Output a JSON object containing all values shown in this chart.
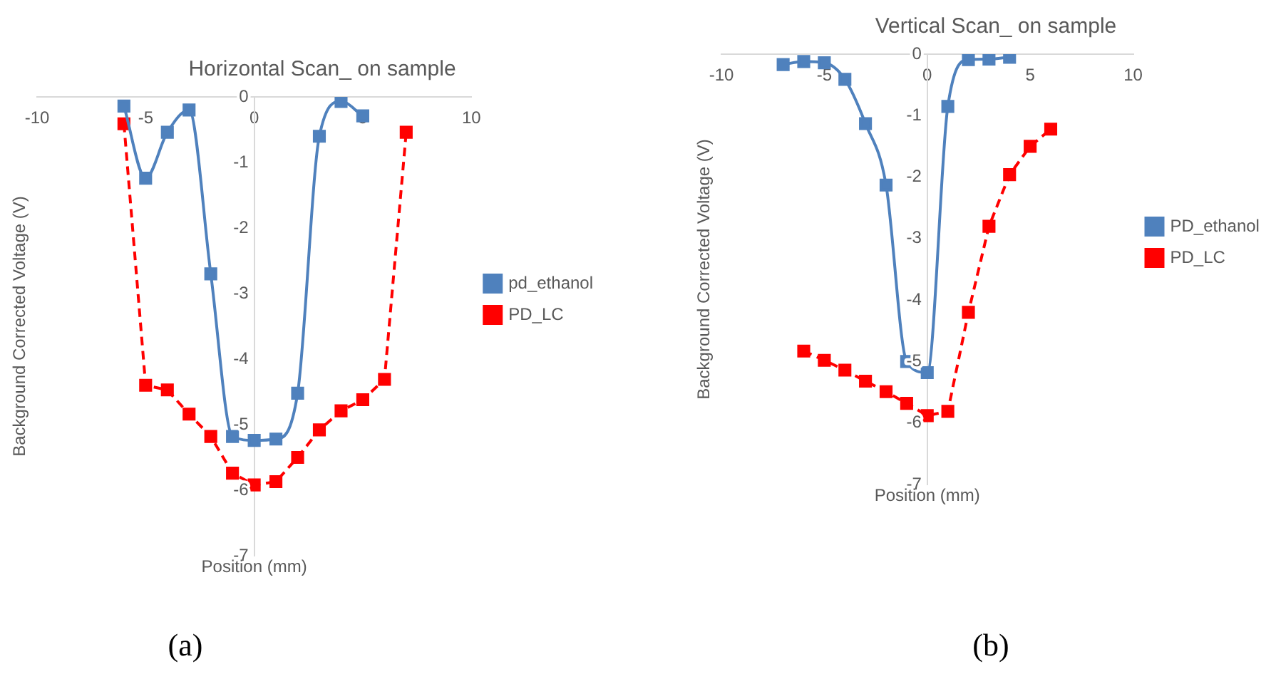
{
  "chart_data": [
    {
      "type": "line",
      "title": "Horizontal Scan_ on sample",
      "xlabel": "Position (mm)",
      "ylabel": "Background Corrected Voltage (V)",
      "xlim": [
        -10,
        10
      ],
      "xticks": [
        -10,
        -5,
        0,
        5,
        10
      ],
      "ylim": [
        -7,
        0
      ],
      "yticks": [
        0,
        -1,
        -2,
        -3,
        -4,
        -5,
        -6,
        -7
      ],
      "grid": false,
      "legend": "right",
      "annotations": [
        "(a)"
      ],
      "series": [
        {
          "name": "pd_ethanol",
          "color": "#4f81bd",
          "marker": "square",
          "line_style": "solid",
          "x": [
            -6,
            -5,
            -4,
            -3,
            -2,
            -1,
            0,
            1,
            2,
            3,
            4,
            5
          ],
          "values": [
            -0.14,
            -1.24,
            -0.54,
            -0.2,
            -2.7,
            -5.18,
            -5.24,
            -5.22,
            -4.52,
            -0.6,
            -0.07,
            -0.29
          ]
        },
        {
          "name": "PD_LC",
          "color": "#ff0000",
          "marker": "square",
          "line_style": "dashed",
          "x": [
            -6,
            -5,
            -4,
            -3,
            -2,
            -1,
            0,
            1,
            2,
            3,
            4,
            5,
            6,
            7
          ],
          "values": [
            -0.41,
            -4.4,
            -4.47,
            -4.84,
            -5.18,
            -5.74,
            -5.92,
            -5.87,
            -5.5,
            -5.08,
            -4.79,
            -4.62,
            -4.31,
            -0.54
          ]
        }
      ]
    },
    {
      "type": "line",
      "title": "Vertical Scan_ on sample",
      "xlabel": "Position (mm)",
      "ylabel": "Background Corrected Voltage (V)",
      "xlim": [
        -10,
        10
      ],
      "xticks": [
        -10,
        -5,
        0,
        5,
        10
      ],
      "ylim": [
        -7,
        0
      ],
      "yticks": [
        0,
        -1,
        -2,
        -3,
        -4,
        -5,
        -6,
        -7
      ],
      "grid": false,
      "legend": "right",
      "annotations": [
        "(b)"
      ],
      "series": [
        {
          "name": "PD_ethanol",
          "color": "#4f81bd",
          "marker": "square",
          "line_style": "solid",
          "x": [
            -7,
            -6,
            -5,
            -4,
            -3,
            -2,
            -1,
            0,
            1,
            2,
            3,
            4
          ],
          "values": [
            -0.17,
            -0.12,
            -0.14,
            -0.41,
            -1.13,
            -2.13,
            -5.0,
            -5.18,
            -0.85,
            -0.09,
            -0.08,
            -0.05
          ]
        },
        {
          "name": "PD_LC",
          "color": "#ff0000",
          "marker": "square",
          "line_style": "dashed",
          "x": [
            -6,
            -5,
            -4,
            -3,
            -2,
            -1,
            0,
            1,
            2,
            3,
            4,
            5,
            6
          ],
          "values": [
            -4.83,
            -4.98,
            -5.14,
            -5.32,
            -5.49,
            -5.68,
            -5.88,
            -5.81,
            -4.2,
            -2.8,
            -1.96,
            -1.5,
            -1.22
          ]
        }
      ]
    }
  ]
}
